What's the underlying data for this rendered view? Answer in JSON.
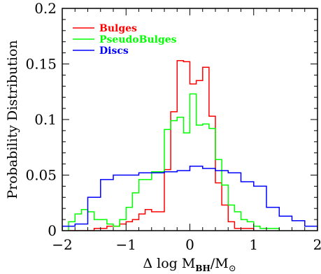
{
  "chart_data": {
    "type": "histogram",
    "xlabel": {
      "prefix": "Δ log M",
      "sub": "BH",
      "slash": "/M",
      "sub2": "⊙"
    },
    "ylabel": "Probability Distribution",
    "xlim": [
      -2,
      2
    ],
    "ylim": [
      0,
      0.2
    ],
    "x_ticks": [
      -2,
      -1,
      0,
      1,
      2
    ],
    "x_tick_labels": [
      "−2",
      "−1",
      "0",
      "1",
      "2"
    ],
    "y_ticks": [
      0,
      0.05,
      0.1,
      0.15,
      0.2
    ],
    "y_tick_labels": [
      "0",
      "0.05",
      "0.1",
      "0.15",
      "0.2"
    ],
    "grid": false,
    "legend_position": "top-left",
    "series": [
      {
        "name": "Bulges",
        "color": "#ff0000",
        "edges": [
          -1.9,
          -1.5,
          -1.4,
          -1.3,
          -1.2,
          -1.1,
          -1.0,
          -0.9,
          -0.8,
          -0.7,
          -0.6,
          -0.5,
          -0.4,
          -0.3,
          -0.2,
          -0.1,
          0.0,
          0.1,
          0.2,
          0.3,
          0.4,
          0.5,
          0.6,
          0.7,
          0.8,
          0.9,
          1.0
        ],
        "values": [
          0.0,
          0.002,
          0.002,
          0.004,
          0.004,
          0.006,
          0.008,
          0.01,
          0.015,
          0.019,
          0.017,
          0.017,
          0.055,
          0.107,
          0.153,
          0.152,
          0.132,
          0.135,
          0.147,
          0.103,
          0.043,
          0.023,
          0.008,
          0.002,
          0.002,
          0.002
        ]
      },
      {
        "name": "PseudoBulges",
        "color": "#00ff00",
        "edges": [
          -1.9,
          -1.8,
          -1.7,
          -1.6,
          -1.5,
          -1.4,
          -1.3,
          -1.2,
          -1.1,
          -1.0,
          -0.9,
          -0.8,
          -0.7,
          -0.6,
          -0.5,
          -0.4,
          -0.3,
          -0.2,
          -0.1,
          0.0,
          0.1,
          0.2,
          0.3,
          0.4,
          0.5,
          0.6,
          0.7,
          0.8,
          0.9,
          1.0,
          1.1,
          1.2,
          1.3,
          1.4
        ],
        "values": [
          0.008,
          0.015,
          0.019,
          0.017,
          0.01,
          0.01,
          0.006,
          0.004,
          0.01,
          0.021,
          0.034,
          0.046,
          0.046,
          0.053,
          0.053,
          0.091,
          0.099,
          0.102,
          0.088,
          0.123,
          0.095,
          0.096,
          0.092,
          0.064,
          0.041,
          0.023,
          0.017,
          0.01,
          0.008,
          0.004,
          0.002,
          0.002,
          0.002
        ]
      },
      {
        "name": "Discs",
        "color": "#0000ff",
        "edges": [
          -2.0,
          -1.8,
          -1.6,
          -1.4,
          -1.2,
          -1.0,
          -0.8,
          -0.6,
          -0.4,
          -0.2,
          0.0,
          0.2,
          0.4,
          0.6,
          0.8,
          1.0,
          1.2,
          1.4,
          1.6,
          1.8,
          2.0
        ],
        "values": [
          0.004,
          0.006,
          0.03,
          0.046,
          0.05,
          0.05,
          0.052,
          0.052,
          0.053,
          0.054,
          0.058,
          0.056,
          0.054,
          0.052,
          0.044,
          0.04,
          0.021,
          0.013,
          0.009,
          0.004
        ]
      }
    ]
  }
}
